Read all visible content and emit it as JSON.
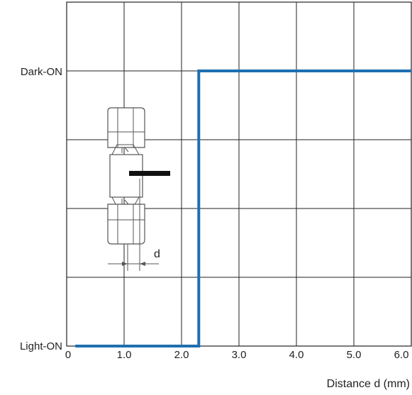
{
  "chart_data": {
    "type": "line",
    "title": "",
    "xlabel": "Distance d (mm)",
    "ylabel": "",
    "xlim": [
      0,
      6.0
    ],
    "x_ticks": [
      0,
      1.0,
      2.0,
      3.0,
      4.0,
      5.0,
      6.0
    ],
    "x_tick_labels": [
      "0",
      "1.0",
      "2.0",
      "3.0",
      "4.0",
      "5.0",
      "6.0"
    ],
    "y_states": [
      "Light-ON",
      "Dark-ON"
    ],
    "grid": true,
    "legend": "none",
    "series": [
      {
        "color": "#1f6fb0",
        "points": [
          {
            "x": 0.15,
            "y": "Light-ON"
          },
          {
            "x": 2.3,
            "y": "Light-ON"
          },
          {
            "x": 2.3,
            "y": "Dark-ON"
          },
          {
            "x": 6.2,
            "y": "Dark-ON"
          }
        ]
      }
    ],
    "annotation": {
      "label": "d",
      "icon": "photo-interrupter-icon"
    }
  }
}
